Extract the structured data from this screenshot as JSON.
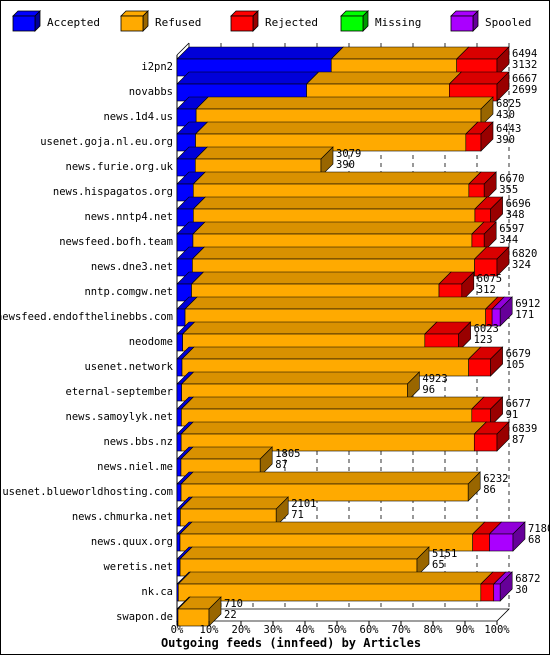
{
  "chart_data": {
    "type": "bar",
    "orientation": "horizontal",
    "stacked": true,
    "style": "3d",
    "xlabel": "Outgoing feeds (innfeed) by Articles",
    "xlim": [
      0,
      100
    ],
    "x_unit": "%",
    "x_ticks": [
      "0%",
      "10%",
      "20%",
      "30%",
      "40%",
      "50%",
      "60%",
      "70%",
      "80%",
      "90%",
      "100%"
    ],
    "legend": {
      "placement": "top",
      "entries": [
        {
          "name": "Accepted",
          "color": "#0000ff"
        },
        {
          "name": "Refused",
          "color": "#ffaa00"
        },
        {
          "name": "Rejected",
          "color": "#ff0000"
        },
        {
          "name": "Missing",
          "color": "#00ff00"
        },
        {
          "name": "Spooled",
          "color": "#aa00ff"
        }
      ]
    },
    "categories": [
      "i2pn2",
      "novabbs",
      "news.1d4.us",
      "usenet.goja.nl.eu.org",
      "news.furie.org.uk",
      "news.hispagatos.org",
      "news.nntp4.net",
      "newsfeed.bofh.team",
      "news.dne3.net",
      "nntp.comgw.net",
      "newsfeed.endofthelinebbs.com",
      "neodome",
      "usenet.network",
      "eternal-september",
      "news.samoylyk.net",
      "news.bbs.nz",
      "news.niel.me",
      "usenet.blueworldhosting.com",
      "news.chmurka.net",
      "news.quux.org",
      "weretis.net",
      "nk.ca",
      "swapon.de"
    ],
    "offered_totals": [
      6494,
      6667,
      6825,
      6443,
      3079,
      6670,
      6696,
      6597,
      6820,
      6075,
      6912,
      6023,
      6679,
      4923,
      6677,
      6839,
      1805,
      6232,
      2101,
      7180,
      5151,
      6872,
      710
    ],
    "accepted_totals": [
      3132,
      2699,
      430,
      390,
      390,
      355,
      348,
      344,
      324,
      312,
      171,
      123,
      105,
      96,
      91,
      87,
      87,
      86,
      71,
      68,
      65,
      30,
      22
    ],
    "series": [
      {
        "name": "Accepted",
        "values": [
          48.2,
          40.5,
          6.3,
          6.1,
          12.7,
          5.3,
          5.2,
          5.2,
          4.8,
          5.1,
          2.5,
          2.0,
          1.6,
          2.0,
          1.4,
          1.3,
          4.8,
          1.4,
          3.4,
          0.9,
          1.3,
          0.4,
          3.1
        ]
      },
      {
        "name": "Refused",
        "values": [
          39.2,
          44.6,
          93.7,
          88.9,
          87.3,
          89.7,
          89.8,
          90.8,
          88.2,
          86.9,
          93.0,
          86.0,
          91.4,
          98.0,
          92.6,
          91.6,
          95.2,
          98.6,
          96.6,
          87.1,
          98.7,
          93.6,
          96.9
        ]
      },
      {
        "name": "Rejected",
        "values": [
          12.6,
          14.9,
          0,
          5.0,
          0,
          5.0,
          5.0,
          4.0,
          7.0,
          8.0,
          2.0,
          12.0,
          7.0,
          0,
          6.0,
          7.1,
          0,
          0,
          0,
          5.0,
          0,
          4.0,
          0
        ]
      },
      {
        "name": "Missing",
        "values": [
          0,
          0,
          0,
          0,
          0,
          0,
          0,
          0,
          0,
          0,
          0,
          0,
          0,
          0,
          0,
          0,
          0,
          0,
          0,
          0,
          0,
          0,
          0
        ]
      },
      {
        "name": "Spooled",
        "values": [
          0,
          0,
          0,
          0,
          0,
          0,
          0,
          0,
          0,
          0,
          2.5,
          0,
          0,
          0,
          0,
          0,
          0,
          0,
          0,
          7.0,
          0,
          2.0,
          0
        ]
      }
    ],
    "bar_length_pct": [
      100,
      100,
      95,
      95,
      45,
      96,
      98,
      96,
      100,
      89,
      101,
      88,
      98,
      72,
      98,
      100,
      26,
      91,
      31,
      105,
      75,
      101,
      10
    ]
  }
}
